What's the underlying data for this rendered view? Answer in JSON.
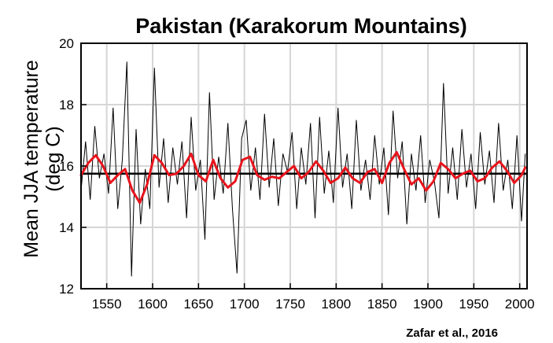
{
  "chart_data": {
    "type": "line",
    "title": "Pakistan (Karakorum Mountains)",
    "ylabel_line1": "Mean JJA temperature",
    "ylabel_line2": "(deg C)",
    "xlabel": "",
    "xlim": [
      1522,
      2008
    ],
    "ylim": [
      12,
      20
    ],
    "xticks": [
      1550,
      1600,
      1650,
      1700,
      1750,
      1800,
      1850,
      1900,
      1950,
      2000
    ],
    "yticks": [
      12,
      14,
      16,
      18,
      20
    ],
    "grid": true,
    "mean_line": 15.75,
    "annotation": "Zafar et al., 2016",
    "colors": {
      "annual": "#000000",
      "smoothed": "#e8141c",
      "mean": "#000000",
      "grid": "#d6d6d6"
    },
    "series": [
      {
        "values_note": "",
        "x": [
          1522,
          1527,
          1532,
          1537,
          1542,
          1547,
          1552,
          1557,
          1562,
          1567,
          1572,
          1577,
          1582,
          1587,
          1592,
          1597,
          1602,
          1607,
          1612,
          1617,
          1622,
          1627,
          1632,
          1637,
          1642,
          1647,
          1652,
          1657,
          1662,
          1667,
          1672,
          1677,
          1682,
          1687,
          1692,
          1697,
          1702,
          1707,
          1712,
          1717,
          1722,
          1727,
          1732,
          1737,
          1742,
          1747,
          1752,
          1757,
          1762,
          1767,
          1772,
          1777,
          1782,
          1787,
          1792,
          1797,
          1802,
          1807,
          1812,
          1817,
          1822,
          1827,
          1832,
          1837,
          1842,
          1847,
          1852,
          1857,
          1862,
          1867,
          1872,
          1877,
          1882,
          1887,
          1892,
          1897,
          1902,
          1907,
          1912,
          1917,
          1922,
          1927,
          1932,
          1937,
          1942,
          1947,
          1952,
          1957,
          1962,
          1967,
          1972,
          1977,
          1982,
          1987,
          1992,
          1997,
          2002,
          2006
        ],
        "values": [
          15.2,
          16.8,
          14.9,
          17.3,
          15.6,
          16.4,
          15.1,
          17.9,
          14.6,
          16.2,
          19.4,
          12.4,
          17.2,
          14.1,
          15.9,
          14.6,
          19.2,
          15.3,
          16.9,
          14.8,
          16.6,
          15.4,
          16.8,
          14.3,
          17.6,
          15.2,
          16.2,
          13.6,
          18.4,
          14.9,
          16.3,
          15.1,
          17.4,
          14.6,
          12.5,
          16.9,
          17.5,
          15.2,
          16.6,
          14.9,
          17.7,
          15.3,
          16.9,
          14.7,
          16.4,
          15.8,
          17.1,
          14.6,
          16.6,
          15.4,
          17.4,
          14.3,
          17.6,
          15.1,
          16.5,
          14.8,
          17.9,
          15.3,
          16.4,
          14.6,
          17.5,
          15.2,
          16.2,
          14.9,
          17.0,
          15.4,
          16.6,
          14.4,
          17.8,
          15.6,
          16.8,
          14.1,
          16.4,
          15.2,
          17.0,
          14.8,
          16.2,
          15.5,
          14.3,
          18.7,
          15.1,
          16.6,
          14.9,
          17.2,
          15.3,
          16.4,
          14.6,
          17.1,
          15.4,
          16.5,
          14.8,
          17.4,
          15.2,
          16.2,
          14.6,
          17.0,
          14.2,
          16.4
        ]
      },
      {
        "values_note": "",
        "x": [
          1522,
          1530,
          1538,
          1546,
          1554,
          1562,
          1570,
          1578,
          1586,
          1594,
          1602,
          1610,
          1618,
          1626,
          1634,
          1642,
          1650,
          1658,
          1666,
          1674,
          1682,
          1690,
          1698,
          1706,
          1714,
          1722,
          1730,
          1738,
          1746,
          1754,
          1762,
          1770,
          1778,
          1786,
          1794,
          1802,
          1810,
          1818,
          1826,
          1834,
          1842,
          1850,
          1858,
          1866,
          1874,
          1882,
          1890,
          1898,
          1906,
          1914,
          1922,
          1930,
          1938,
          1946,
          1954,
          1962,
          1970,
          1978,
          1986,
          1994,
          2002,
          2006
        ],
        "values": [
          15.7,
          16.1,
          16.35,
          16.0,
          15.45,
          15.7,
          15.9,
          15.2,
          14.8,
          15.4,
          16.35,
          16.1,
          15.7,
          15.75,
          16.0,
          16.4,
          15.7,
          15.5,
          16.2,
          15.6,
          15.3,
          15.5,
          16.2,
          16.3,
          15.7,
          15.55,
          15.65,
          15.6,
          15.8,
          16.0,
          15.6,
          15.8,
          16.15,
          15.85,
          15.45,
          15.6,
          15.95,
          15.6,
          15.45,
          15.8,
          15.9,
          15.45,
          16.1,
          16.45,
          15.9,
          15.4,
          15.6,
          15.2,
          15.5,
          16.1,
          15.9,
          15.6,
          15.75,
          15.85,
          15.5,
          15.6,
          15.95,
          16.15,
          15.85,
          15.45,
          15.7,
          15.95
        ]
      }
    ]
  }
}
